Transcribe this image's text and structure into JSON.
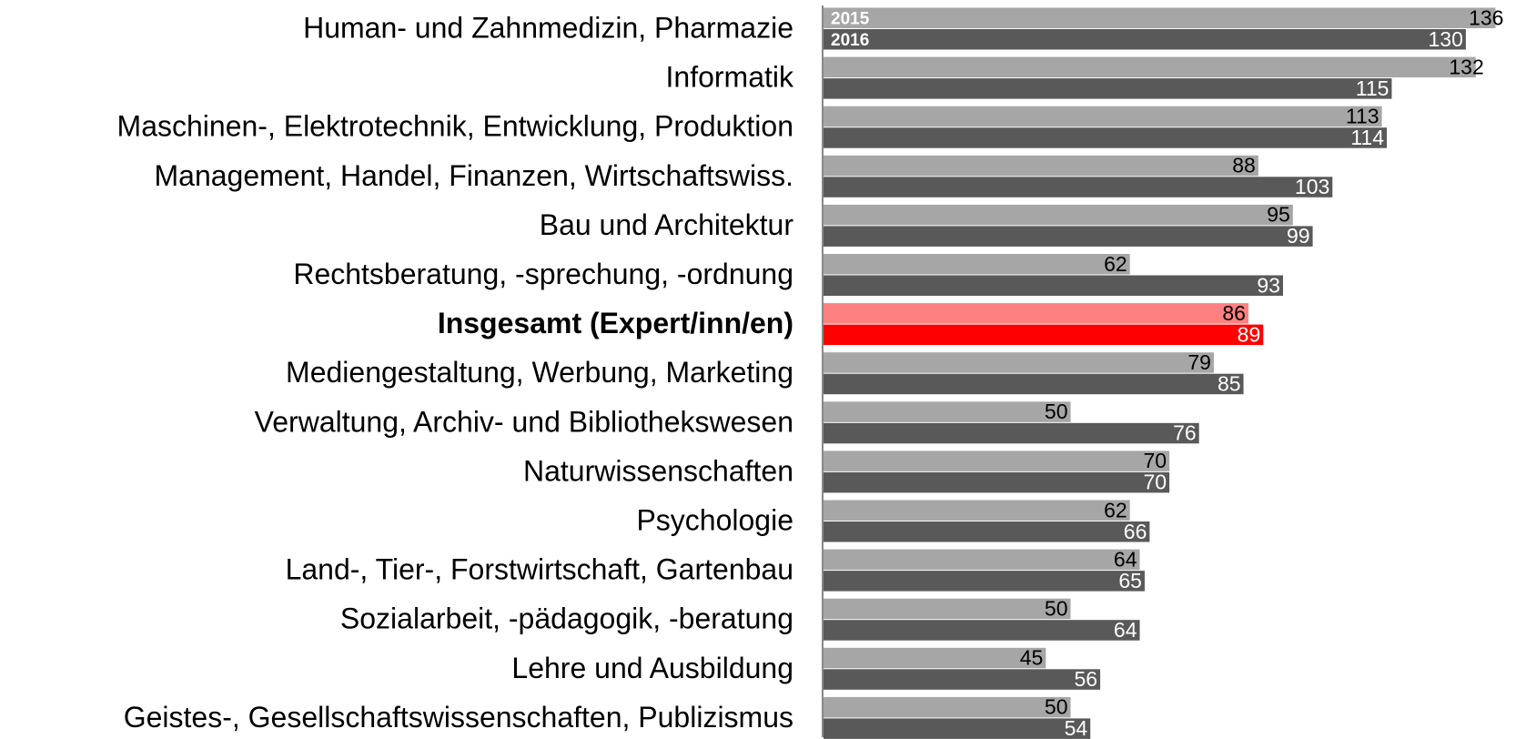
{
  "chart_data": {
    "type": "bar",
    "orientation": "horizontal",
    "categories": [
      "Human- und Zahnmedizin, Pharmazie",
      "Informatik",
      "Maschinen-, Elektrotechnik, Entwicklung, Produktion",
      "Management, Handel, Finanzen, Wirtschaftswiss.",
      "Bau und Architektur",
      "Rechtsberatung, -sprechung, -ordnung",
      "Insgesamt (Expert/inn/en)",
      "Mediengestaltung, Werbung, Marketing",
      "Verwaltung, Archiv- und Bibliothekswesen",
      "Naturwissenschaften ",
      "Psychologie",
      "Land-, Tier-, Forstwirtschaft, Gartenbau",
      "Sozialarbeit, -pädagogik, -beratung",
      "Lehre und Ausbildung",
      "Geistes-, Gesellschaftswissenschaften, Publizismus"
    ],
    "category_weight": [
      "normal",
      "normal",
      "normal",
      "normal",
      "normal",
      "normal",
      "bold",
      "normal",
      "normal",
      "normal",
      "normal",
      "normal",
      "normal",
      "normal",
      "normal"
    ],
    "series": [
      {
        "name": "2015",
        "color": "#a6a6a6",
        "label_color": "#000000",
        "colors": [
          "#a6a6a6",
          "#a6a6a6",
          "#a6a6a6",
          "#a6a6a6",
          "#a6a6a6",
          "#a6a6a6",
          "#ff8080",
          "#a6a6a6",
          "#a6a6a6",
          "#a6a6a6",
          "#a6a6a6",
          "#a6a6a6",
          "#a6a6a6",
          "#a6a6a6",
          "#a6a6a6"
        ],
        "values": [
          136,
          132,
          113,
          88,
          95,
          62,
          86,
          79,
          50,
          70,
          62,
          64,
          50,
          45,
          50
        ]
      },
      {
        "name": "2016",
        "color": "#595959",
        "label_color": "#ffffff",
        "colors": [
          "#595959",
          "#595959",
          "#595959",
          "#595959",
          "#595959",
          "#595959",
          "#ff0000",
          "#595959",
          "#595959",
          "#595959",
          "#595959",
          "#595959",
          "#595959",
          "#595959",
          "#595959"
        ],
        "values": [
          130,
          115,
          114,
          103,
          99,
          93,
          89,
          85,
          76,
          70,
          66,
          65,
          64,
          56,
          54
        ]
      }
    ],
    "legend": "inside-first-bars"
  }
}
